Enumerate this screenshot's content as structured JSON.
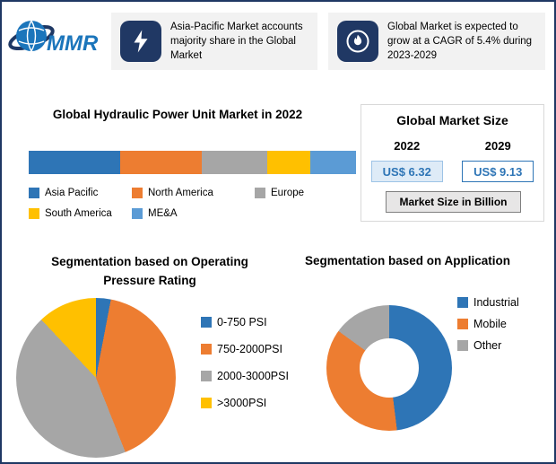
{
  "theme": {
    "navy": "#203864",
    "border_navy": "#1F3864",
    "panel_bg": "#F2F2F2",
    "value_blue": "#2E75B6",
    "value1_bg": "#DEEBF7",
    "footnote_bg": "#E7E6E6"
  },
  "header": {
    "logo_text": "MMR",
    "callout1": "Asia-Pacific Market accounts majority share in the Global Market",
    "callout2": "Global Market is expected to grow at a CAGR of 5.4% during 2023-2029"
  },
  "market_size_panel": {
    "title": "Global Market Size",
    "year1": "2022",
    "year2": "2029",
    "value1": "US$ 6.32",
    "value2": "US$ 9.13",
    "footnote": "Market Size in Billion"
  },
  "chart_data": [
    {
      "type": "bar",
      "orientation": "horizontal-stacked",
      "title": "Global Hydraulic Power Unit Market in 2022",
      "legend_position": "bottom",
      "series": [
        {
          "name": "Asia Pacific",
          "value": 28,
          "color": "#2E75B6"
        },
        {
          "name": "North America",
          "value": 25,
          "color": "#ED7D31"
        },
        {
          "name": "Europe",
          "value": 20,
          "color": "#A6A6A6"
        },
        {
          "name": "South America",
          "value": 13,
          "color": "#FFC000"
        },
        {
          "name": "ME&A",
          "value": 14,
          "color": "#5B9BD5"
        }
      ]
    },
    {
      "type": "pie",
      "title": "Segmentation based on Operating Pressure Rating",
      "legend_position": "right",
      "slices": [
        {
          "label": "0-750 PSI",
          "value": 3,
          "color": "#2E75B6"
        },
        {
          "label": "750-2000PSI",
          "value": 41,
          "color": "#ED7D31"
        },
        {
          "label": "2000-3000PSI",
          "value": 44,
          "color": "#A6A6A6"
        },
        {
          "label": ">3000PSI",
          "value": 12,
          "color": "#FFC000"
        }
      ]
    },
    {
      "type": "pie",
      "subtype": "donut",
      "title": "Segmentation based on Application",
      "legend_position": "right",
      "slices": [
        {
          "label": "Industrial",
          "value": 48,
          "color": "#2E75B6"
        },
        {
          "label": "Mobile",
          "value": 37,
          "color": "#ED7D31"
        },
        {
          "label": "Other",
          "value": 15,
          "color": "#A6A6A6"
        }
      ]
    }
  ]
}
